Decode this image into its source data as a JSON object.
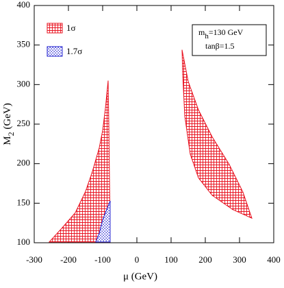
{
  "chart_data": {
    "type": "region",
    "x_label": "μ (GeV)",
    "y_label": {
      "main": "M",
      "sub": "2",
      "rest": " (GeV)"
    },
    "annotation": {
      "line1": {
        "main": "m",
        "sub": "h",
        "rest": "=130 GeV"
      },
      "line2": "tanβ=1.5"
    },
    "xlim": [
      -300,
      400
    ],
    "xticks": [
      -300,
      -200,
      -100,
      0,
      100,
      200,
      300,
      400
    ],
    "ylim": [
      100,
      400
    ],
    "yticks": [
      100,
      150,
      200,
      250,
      300,
      350,
      400
    ],
    "series": [
      {
        "name": "1σ",
        "color": "#e8101e",
        "hatch": "grid",
        "polygons": [
          {
            "x": [
              -256,
              -220,
              -180,
              -150,
              -130,
              -110,
              -100,
              -92,
              -84,
              -82,
              -80,
              -78,
              -78
            ],
            "y": [
              101,
              118,
              138,
              165,
              190,
              220,
              242,
              270,
              305,
              250,
              180,
              120,
              101
            ]
          },
          {
            "x": [
              132,
              150,
              180,
              220,
              270,
              310,
              336,
              280,
              220,
              180,
              156,
              140,
              134
            ],
            "y": [
              344,
              304,
              268,
              234,
              199,
              164,
              131,
              142,
              160,
              182,
              212,
              260,
              312
            ]
          }
        ]
      },
      {
        "name": "1.7σ",
        "color": "#2020d0",
        "hatch": "dots",
        "polygons": [
          {
            "x": [
              -120,
              -110,
              -100,
              -90,
              -78,
              -78
            ],
            "y": [
              101,
              112,
              129,
              140,
              153,
              101
            ]
          }
        ]
      }
    ]
  }
}
